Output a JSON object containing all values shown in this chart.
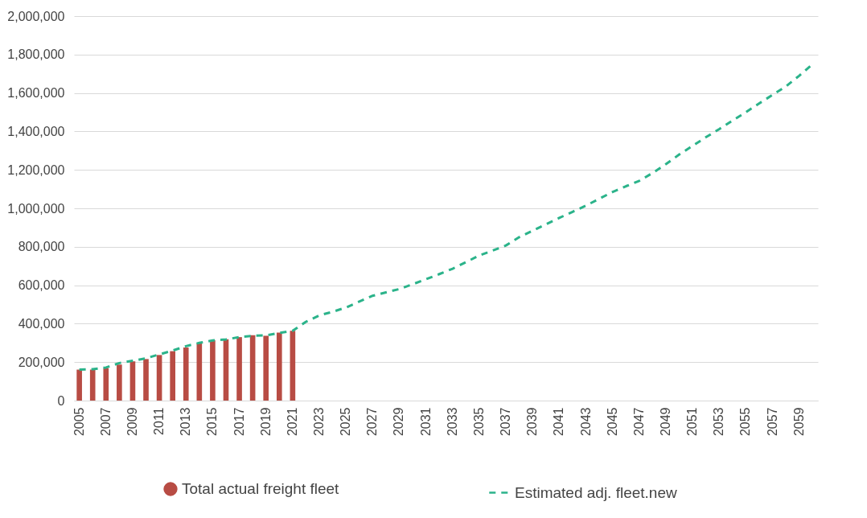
{
  "chart_data": {
    "type": "bar",
    "categories": [
      "2005",
      null,
      "2007",
      null,
      "2009",
      null,
      "2011",
      null,
      "2013",
      null,
      "2015",
      null,
      "2017",
      null,
      "2019",
      null,
      "2021",
      null,
      "2023",
      null,
      "2025",
      null,
      "2027",
      null,
      "2029",
      null,
      "2031",
      null,
      "2033",
      null,
      "2035",
      null,
      "2037",
      null,
      "2039",
      null,
      "2041",
      null,
      "2043",
      null,
      "2045",
      null,
      "2047",
      null,
      "2049",
      null,
      "2051",
      null,
      "2053",
      null,
      "2055",
      null,
      "2057",
      null,
      "2059",
      null
    ],
    "series": [
      {
        "name": "Total actual freight fleet",
        "color": "#b84c44",
        "values": [
          161000,
          161000,
          169000,
          187000,
          204000,
          216000,
          237000,
          257000,
          276000,
          297000,
          314000,
          319000,
          330000,
          340000,
          337000,
          354000,
          363000,
          null,
          null,
          null,
          null,
          null,
          null,
          null,
          null,
          null,
          null,
          null,
          null,
          null,
          null,
          null,
          null,
          null,
          null,
          null,
          null,
          null,
          null,
          null,
          null,
          null,
          null,
          null,
          null,
          null,
          null,
          null,
          null,
          null,
          null,
          null,
          null,
          null,
          null,
          null
        ]
      },
      {
        "name": "Estimated adj. fleet.new",
        "type": "line",
        "color": "#2bb38a",
        "line_style": "dashed",
        "values": [
          161000,
          163000,
          172000,
          195000,
          207000,
          220000,
          240000,
          260000,
          283000,
          300000,
          313000,
          318000,
          330000,
          337000,
          339000,
          352000,
          363000,
          410000,
          443000,
          462000,
          484000,
          515000,
          545000,
          563000,
          580000,
          605000,
          631000,
          658000,
          686000,
          720000,
          755000,
          780000,
          807000,
          850000,
          884000,
          917000,
          950000,
          982000,
          1014000,
          1050000,
          1085000,
          1115000,
          1143000,
          1184000,
          1230000,
          1280000,
          1325000,
          1370000,
          1412000,
          1457000,
          1500000,
          1546000,
          1590000,
          1634000,
          1690000,
          1750000
        ]
      }
    ],
    "ylim": [
      0,
      2000000
    ],
    "yticks": [
      0,
      {
        "value": 200000,
        "label": "200,000"
      },
      {
        "value": 400000,
        "label": "400,000"
      },
      {
        "value": 600000,
        "label": "600,000"
      },
      {
        "value": 800000,
        "label": "800,000"
      },
      {
        "value": 1000000,
        "label": "1,000,000"
      },
      {
        "value": 1200000,
        "label": "1,200,000"
      },
      {
        "value": 1400000,
        "label": "1,400,000"
      },
      {
        "value": 1600000,
        "label": "1,600,000"
      },
      {
        "value": 1800000,
        "label": "1,800,000"
      },
      {
        "value": 2000000,
        "label": "2,000,000"
      }
    ],
    "grid": "y",
    "legend": "bottom"
  }
}
